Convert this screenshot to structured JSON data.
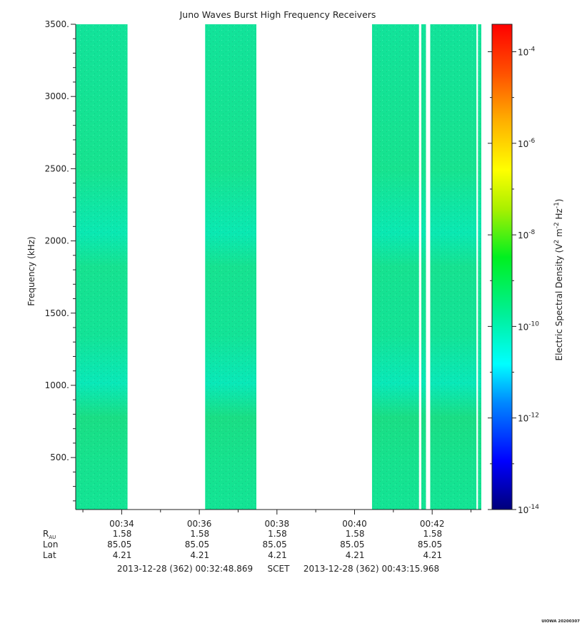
{
  "chart_data": {
    "type": "heatmap",
    "title": "Juno Waves Burst High Frequency Receivers",
    "ylabel": "Frequency (kHz)",
    "ylim": [
      140,
      3500
    ],
    "y_ticks": [
      {
        "value": 500,
        "label": "500."
      },
      {
        "value": 1000,
        "label": "1000."
      },
      {
        "value": 1500,
        "label": "1500."
      },
      {
        "value": 2000,
        "label": "2000."
      },
      {
        "value": 2500,
        "label": "2500."
      },
      {
        "value": 3000,
        "label": "3000."
      },
      {
        "value": 3500,
        "label": "3500."
      }
    ],
    "x_range_minutes": [
      32.8145,
      43.2661
    ],
    "x_ticks": [
      {
        "value": 34,
        "label": "00:34"
      },
      {
        "value": 36,
        "label": "00:36"
      },
      {
        "value": 38,
        "label": "00:38"
      },
      {
        "value": 40,
        "label": "00:40"
      },
      {
        "value": 42,
        "label": "00:42"
      }
    ],
    "data_intervals_minutes": [
      [
        32.8145,
        34.15
      ],
      [
        36.15,
        37.47
      ],
      [
        40.45,
        41.66
      ],
      [
        41.72,
        41.84
      ],
      [
        41.95,
        43.14
      ],
      [
        43.18,
        43.2661
      ]
    ],
    "background_level": "1e-10",
    "colorbar": {
      "label_main": "Electric Spectral Density (V",
      "label_sup1": "2",
      "label_mid1": " m",
      "label_sup2": "-2",
      "label_mid2": " Hz",
      "label_sup3": "-1",
      "label_end": ")",
      "log_min": -14,
      "log_max": -3.4,
      "ticks": [
        {
          "exp": -14,
          "base": "10",
          "sup": "-14"
        },
        {
          "exp": -12,
          "base": "10",
          "sup": "-12"
        },
        {
          "exp": -10,
          "base": "10",
          "sup": "-10"
        },
        {
          "exp": -8,
          "base": "10",
          "sup": "-8"
        },
        {
          "exp": -6,
          "base": "10",
          "sup": "-6"
        },
        {
          "exp": -4,
          "base": "10",
          "sup": "-4"
        }
      ]
    },
    "ephemeris": {
      "rows": [
        {
          "label": "R",
          "label_sub": "AU",
          "values": [
            "1.58",
            "1.58",
            "1.58",
            "1.58",
            "1.58"
          ]
        },
        {
          "label": "Lon",
          "label_sub": "",
          "values": [
            "85.05",
            "85.05",
            "85.05",
            "85.05",
            "85.05"
          ]
        },
        {
          "label": "Lat",
          "label_sub": "",
          "values": [
            "4.21",
            "4.21",
            "4.21",
            "4.21",
            "4.21"
          ]
        }
      ]
    },
    "time_range": {
      "start": "2013-12-28 (362) 00:32:48.869",
      "mid": "SCET",
      "end": "2013-12-28 (362) 00:43:15.968"
    },
    "footer": "UIOWA 20200307"
  }
}
